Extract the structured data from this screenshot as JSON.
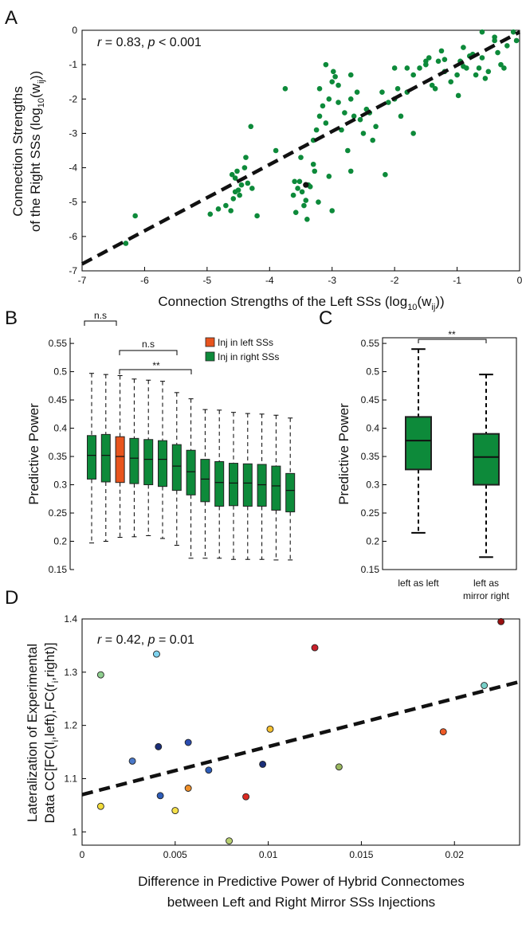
{
  "colors": {
    "green": "#0d8a3a",
    "dark_green": "#0a5a30",
    "orange": "#e8541e",
    "black": "#000000"
  },
  "chart_data": [
    {
      "panel": "A",
      "type": "scatter",
      "annotation_r": "r",
      "annotation_rest": " = 0.83, ",
      "annotation_p": "p",
      "annotation_rest2": " < 0.001",
      "xlabel_main": "Connection Strengths of the Left SSs (log",
      "xlabel_sub": "10",
      "xlabel_mid": "(w",
      "xlabel_sub2": "ij",
      "xlabel_end": "))",
      "ylabel_line1": "Connection Strengths",
      "ylabel_main": "of the Right SSs (log",
      "ylabel_sub": "10",
      "ylabel_mid": "(w",
      "ylabel_sub2": "ij",
      "ylabel_end": "))",
      "xlim": [
        -7,
        0
      ],
      "ylim": [
        -7,
        0
      ],
      "xticks": [
        "-7",
        "-6",
        "-5",
        "-4",
        "-3",
        "-2",
        "-1",
        "0"
      ],
      "yticks": [
        "-7",
        "-6",
        "-5",
        "-4",
        "-3",
        "-2",
        "-1",
        "0"
      ],
      "fit_line": {
        "x": [
          -7,
          0
        ],
        "y": [
          -6.8,
          -0.05
        ]
      },
      "x": [
        -6.3,
        -6.15,
        -4.95,
        -4.82,
        -4.7,
        -4.62,
        -4.58,
        -4.55,
        -4.6,
        -4.5,
        -4.52,
        -4.45,
        -4.4,
        -4.38,
        -4.35,
        -4.3,
        -4.28,
        -4.2,
        -4.55,
        -4.48,
        -3.75,
        -3.6,
        -3.55,
        -3.52,
        -3.48,
        -3.45,
        -3.42,
        -3.4,
        -3.35,
        -3.3,
        -3.25,
        -3.2,
        -3.15,
        -3.1,
        -3.05,
        -3.0,
        -2.98,
        -2.95,
        -2.9,
        -2.85,
        -2.8,
        -2.75,
        -2.7,
        -2.65,
        -2.6,
        -2.55,
        -2.5,
        -2.45,
        -2.4,
        -2.35,
        -2.3,
        -3.2,
        -3.1,
        -2.9,
        -2.7,
        -3.5,
        -3.38,
        -3.0,
        -2.2,
        -2.1,
        -2.0,
        -1.95,
        -1.9,
        -1.8,
        -1.7,
        -1.6,
        -1.5,
        -1.45,
        -1.4,
        -1.35,
        -1.3,
        -1.25,
        -1.2,
        -1.1,
        -1.0,
        -0.95,
        -0.9,
        -0.85,
        -0.8,
        -0.75,
        -0.7,
        -0.65,
        -0.6,
        -0.55,
        -0.5,
        -0.4,
        -0.35,
        -0.3,
        -0.2,
        -0.1,
        -0.05,
        -2.0,
        -1.8,
        -1.5,
        -1.2,
        -0.9,
        -0.98,
        -0.6,
        -0.4,
        -0.25,
        -3.9,
        -3.3,
        -3.05,
        -2.7,
        -2.15,
        -1.7,
        -3.62,
        -3.58,
        -3.28,
        -3.22
      ],
      "y": [
        -6.2,
        -5.4,
        -5.35,
        -5.2,
        -5.1,
        -5.25,
        -4.9,
        -4.7,
        -4.2,
        -4.65,
        -4.1,
        -4.5,
        -4.0,
        -3.7,
        -4.45,
        -2.8,
        -4.6,
        -5.4,
        -4.3,
        -4.8,
        -1.7,
        -4.4,
        -4.6,
        -4.4,
        -4.7,
        -5.1,
        -4.95,
        -5.5,
        -4.55,
        -3.2,
        -2.9,
        -2.5,
        -2.2,
        -2.7,
        -2.0,
        -1.5,
        -1.2,
        -1.35,
        -1.6,
        -2.9,
        -2.4,
        -3.5,
        -2.0,
        -2.5,
        -1.8,
        -2.6,
        -3.0,
        -2.3,
        -2.4,
        -3.2,
        -2.8,
        -1.7,
        -1.0,
        -2.1,
        -1.3,
        -3.7,
        -4.5,
        -5.25,
        -1.8,
        -2.1,
        -1.1,
        -1.7,
        -2.5,
        -1.8,
        -1.3,
        -1.1,
        -1.0,
        -0.8,
        -1.6,
        -1.7,
        -0.9,
        -0.6,
        -1.2,
        -1.5,
        -1.3,
        -0.9,
        -0.5,
        -1.1,
        -0.75,
        -0.7,
        -1.3,
        -1.1,
        -0.8,
        -1.4,
        -1.2,
        -0.2,
        -0.65,
        -1.0,
        -0.45,
        -0.05,
        -0.3,
        -2.0,
        -1.1,
        -0.9,
        -0.85,
        -1.05,
        -1.9,
        -0.05,
        -0.3,
        -1.1,
        -3.5,
        -3.9,
        -4.25,
        -4.1,
        -4.2,
        -3.0,
        -4.8,
        -5.3,
        -4.1,
        -5.0
      ],
      "highlight_point": {
        "x": -3.42,
        "y": -4.5
      }
    },
    {
      "panel": "B",
      "type": "boxplot",
      "ylabel": "Predictive Power",
      "ylim": [
        0.15,
        0.56
      ],
      "yticks": [
        "0.15",
        "0.2",
        "0.25",
        "0.3",
        "0.35",
        "0.4",
        "0.45",
        "0.5",
        "0.55"
      ],
      "legend": [
        "Inj in left SSs",
        "Inj in right SSs"
      ],
      "sig_labels": [
        "n.s",
        "n.s",
        "**"
      ],
      "boxes": [
        {
          "min": 0.197,
          "q1": 0.31,
          "med": 0.352,
          "q3": 0.387,
          "max": 0.497,
          "group": "right"
        },
        {
          "min": 0.2,
          "q1": 0.305,
          "med": 0.352,
          "q3": 0.389,
          "max": 0.495,
          "group": "right"
        },
        {
          "min": 0.207,
          "q1": 0.304,
          "med": 0.35,
          "q3": 0.385,
          "max": 0.493,
          "group": "left"
        },
        {
          "min": 0.208,
          "q1": 0.302,
          "med": 0.347,
          "q3": 0.382,
          "max": 0.487,
          "group": "right"
        },
        {
          "min": 0.21,
          "q1": 0.3,
          "med": 0.345,
          "q3": 0.38,
          "max": 0.485,
          "group": "right"
        },
        {
          "min": 0.205,
          "q1": 0.297,
          "med": 0.345,
          "q3": 0.378,
          "max": 0.483,
          "group": "right"
        },
        {
          "min": 0.193,
          "q1": 0.29,
          "med": 0.333,
          "q3": 0.371,
          "max": 0.463,
          "group": "right"
        },
        {
          "min": 0.17,
          "q1": 0.282,
          "med": 0.323,
          "q3": 0.361,
          "max": 0.452,
          "group": "right"
        },
        {
          "min": 0.17,
          "q1": 0.27,
          "med": 0.31,
          "q3": 0.345,
          "max": 0.433,
          "group": "right"
        },
        {
          "min": 0.17,
          "q1": 0.262,
          "med": 0.304,
          "q3": 0.341,
          "max": 0.432,
          "group": "right"
        },
        {
          "min": 0.168,
          "q1": 0.263,
          "med": 0.303,
          "q3": 0.338,
          "max": 0.428,
          "group": "right"
        },
        {
          "min": 0.168,
          "q1": 0.262,
          "med": 0.303,
          "q3": 0.337,
          "max": 0.426,
          "group": "right"
        },
        {
          "min": 0.168,
          "q1": 0.262,
          "med": 0.3,
          "q3": 0.336,
          "max": 0.425,
          "group": "right"
        },
        {
          "min": 0.167,
          "q1": 0.255,
          "med": 0.298,
          "q3": 0.333,
          "max": 0.423,
          "group": "right"
        },
        {
          "min": 0.167,
          "q1": 0.252,
          "med": 0.29,
          "q3": 0.32,
          "max": 0.418,
          "group": "right"
        }
      ]
    },
    {
      "panel": "C",
      "type": "boxplot",
      "ylabel": "Predictive Power",
      "ylim": [
        0.15,
        0.56
      ],
      "yticks": [
        "0.15",
        "0.2",
        "0.25",
        "0.3",
        "0.35",
        "0.4",
        "0.45",
        "0.5",
        "0.55"
      ],
      "categories": [
        "left as left",
        "left as",
        "mirror right"
      ],
      "sig_label": "**",
      "boxes": [
        {
          "min": 0.215,
          "q1": 0.327,
          "med": 0.378,
          "q3": 0.42,
          "max": 0.54
        },
        {
          "min": 0.172,
          "q1": 0.3,
          "med": 0.349,
          "q3": 0.39,
          "max": 0.495
        }
      ]
    },
    {
      "panel": "D",
      "type": "scatter",
      "annotation_r": "r",
      "annotation_rest": " = 0.42, ",
      "annotation_p": "p",
      "annotation_rest2": " = 0.01",
      "xlabel_line1": "Difference in Predictive Power of Hybrid Connectomes",
      "xlabel_line2": "between Left and Right Mirror SSs Injections",
      "ylabel_line1": "Lateralization  of Experimental",
      "ylabel_line2": "Data CC[FC(l",
      "ylabel_sub": "i",
      "ylabel_mid": ",left),FC(r",
      "ylabel_sub2": "i",
      "ylabel_end": ",right)]",
      "xlim": [
        0,
        0.0235
      ],
      "ylim": [
        0.975,
        1.4
      ],
      "xticks": [
        "0",
        "0.005",
        "0.01",
        "0.015",
        "0.02"
      ],
      "yticks": [
        "1",
        "1.1",
        "1.2",
        "1.3",
        "1.4"
      ],
      "fit_line": {
        "x": [
          0,
          0.0235
        ],
        "y": [
          1.07,
          1.282
        ]
      },
      "points": [
        {
          "x": 0.001,
          "y": 1.295,
          "c": "#8fcf8f"
        },
        {
          "x": 0.001,
          "y": 1.048,
          "c": "#f2dc3a"
        },
        {
          "x": 0.0027,
          "y": 1.133,
          "c": "#4a78c8"
        },
        {
          "x": 0.004,
          "y": 1.334,
          "c": "#7fd3ee"
        },
        {
          "x": 0.0041,
          "y": 1.16,
          "c": "#1a2e78"
        },
        {
          "x": 0.0042,
          "y": 1.068,
          "c": "#2d5cb8"
        },
        {
          "x": 0.005,
          "y": 1.04,
          "c": "#f5e04a"
        },
        {
          "x": 0.0057,
          "y": 1.168,
          "c": "#2a4cb0"
        },
        {
          "x": 0.0057,
          "y": 1.082,
          "c": "#f0902a"
        },
        {
          "x": 0.0068,
          "y": 1.116,
          "c": "#2d5cb8"
        },
        {
          "x": 0.0079,
          "y": 0.983,
          "c": "#b8d070"
        },
        {
          "x": 0.0088,
          "y": 1.066,
          "c": "#dc2a22"
        },
        {
          "x": 0.0097,
          "y": 1.127,
          "c": "#1a2e78"
        },
        {
          "x": 0.0101,
          "y": 1.193,
          "c": "#f5c030"
        },
        {
          "x": 0.0125,
          "y": 1.346,
          "c": "#c8202a"
        },
        {
          "x": 0.0138,
          "y": 1.122,
          "c": "#9ab860"
        },
        {
          "x": 0.0194,
          "y": 1.188,
          "c": "#ee5a26"
        },
        {
          "x": 0.0216,
          "y": 1.275,
          "c": "#78d0c8"
        },
        {
          "x": 0.0225,
          "y": 1.395,
          "c": "#9a1010"
        }
      ]
    }
  ],
  "panel_labels": [
    "A",
    "B",
    "C",
    "D"
  ]
}
